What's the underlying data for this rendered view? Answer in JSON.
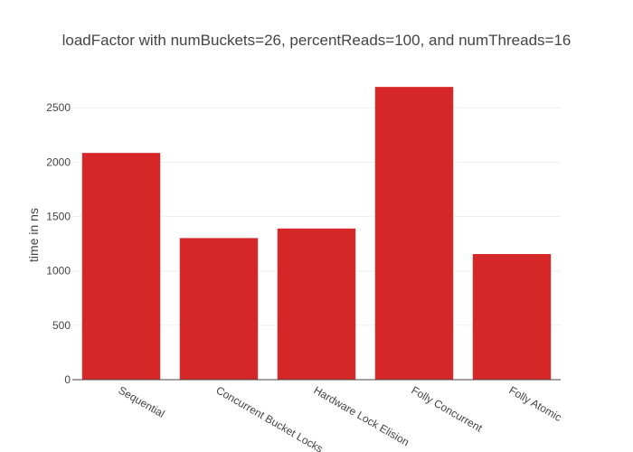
{
  "chart_data": {
    "type": "bar",
    "title": "loadFactor with numBuckets=26, percentReads=100, and numThreads=16",
    "xlabel": "",
    "ylabel": "time in ns",
    "categories": [
      "Sequential",
      "Concurrent Bucket Locks",
      "Hardware Lock Elision",
      "Folly Concurrent",
      "Folly Atomic"
    ],
    "values": [
      2085,
      1302,
      1390,
      2692,
      1155
    ],
    "ylim": [
      0,
      2660
    ],
    "yticks": [
      0,
      500,
      1000,
      1500,
      2000,
      2500
    ],
    "bar_color": "#d62728",
    "grid": true,
    "legend": "none"
  }
}
